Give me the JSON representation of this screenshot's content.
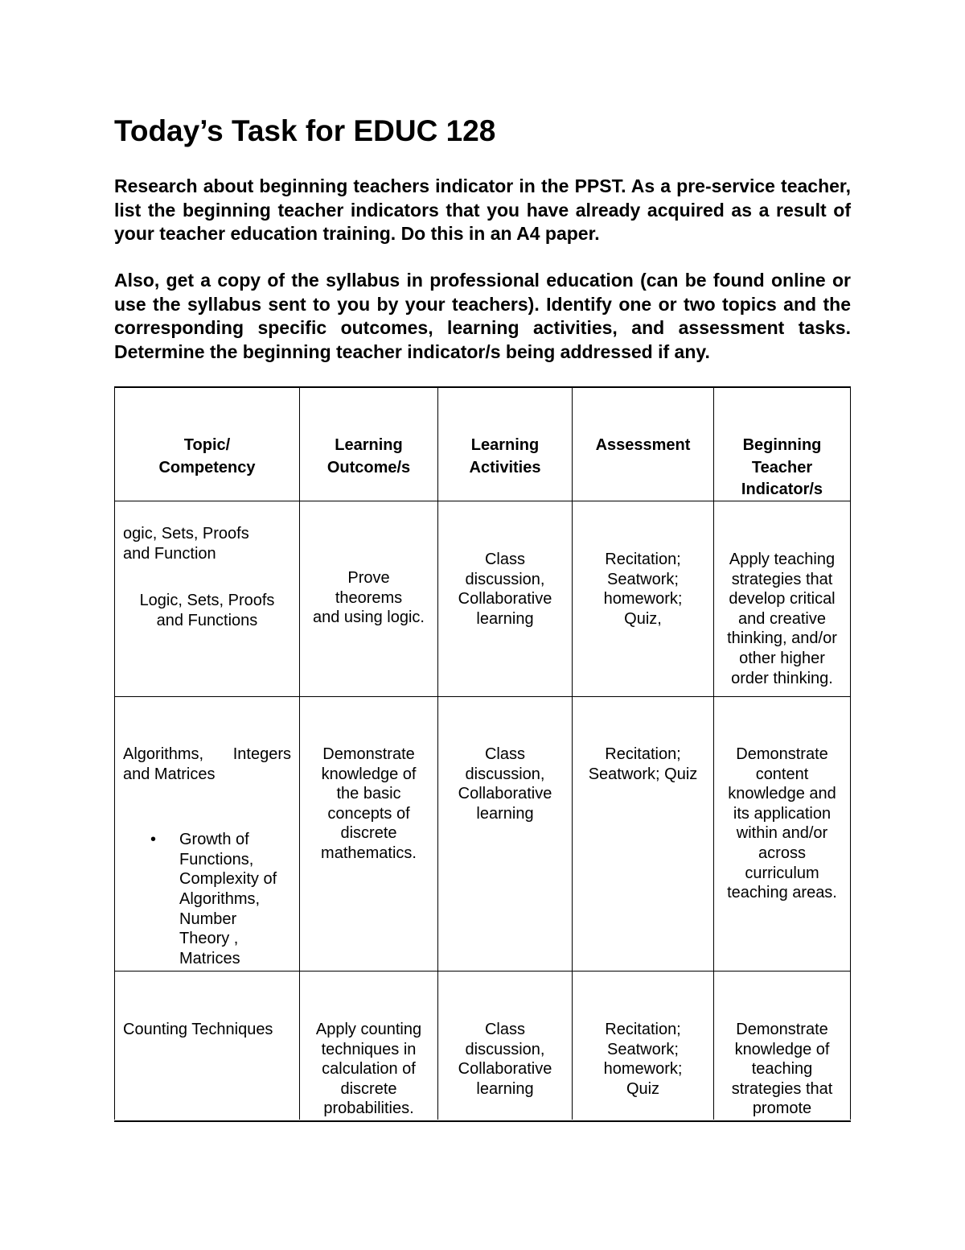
{
  "title": "Today’s Task for EDUC 128",
  "paragraphs": [
    "Research about beginning teachers indicator in the PPST. As a pre-service teacher, list the beginning teacher indicators that you have already acquired as a result of your teacher education training. Do this in an A4 paper.",
    "Also, get a copy of the syllabus in professional education (can be found online or use the syllabus sent to you by your teachers). Identify one or two topics and the corresponding specific outcomes, learning activities, and assessment tasks. Determine the beginning teacher indicator/s being addressed if any."
  ],
  "table": {
    "headers": [
      [
        "Topic/",
        "Competency"
      ],
      [
        "Learning",
        "Outcome/s"
      ],
      [
        "Learning",
        "Activities"
      ],
      [
        "Assessment"
      ],
      [
        "Beginning",
        "Teacher",
        "Indicator/s"
      ]
    ],
    "rows": [
      {
        "topic_a": [
          "ogic, Sets, Proofs",
          "and Function"
        ],
        "topic_b": [
          "Logic, Sets, Proofs",
          "and Functions"
        ],
        "outcome": [
          "Prove",
          "theorems",
          "and using logic."
        ],
        "activities": [
          "Class",
          "discussion,",
          "Collaborative",
          "learning"
        ],
        "assessment": [
          "Recitation;",
          "Seatwork;",
          "homework;",
          "Quiz,"
        ],
        "indicator": [
          "Apply teaching",
          "strategies that",
          "develop critical",
          "and creative",
          "thinking, and/or",
          "other higher",
          "order thinking."
        ]
      },
      {
        "topic_a": [
          "Algorithms,",
          "Integers",
          "and Matrices"
        ],
        "topic_bullet": [
          "Growth of",
          "Functions,",
          "Complexity of",
          "Algorithms,",
          "Number",
          "Theory ,",
          "Matrices"
        ],
        "outcome": [
          "Demonstrate",
          "knowledge of",
          "the basic",
          "concepts of",
          "discrete",
          "mathematics."
        ],
        "activities": [
          "Class",
          "discussion,",
          "Collaborative",
          "learning"
        ],
        "assessment": [
          "Recitation;",
          "Seatwork; Quiz"
        ],
        "indicator": [
          "Demonstrate",
          "content",
          "knowledge and",
          "its application",
          "within and/or",
          "across",
          "curriculum",
          "teaching areas."
        ]
      },
      {
        "topic_a": [
          "Counting Techniques"
        ],
        "outcome": [
          "Apply counting",
          "techniques in",
          "calculation of",
          "discrete",
          "probabilities."
        ],
        "activities": [
          "Class",
          "discussion,",
          "Collaborative",
          "learning"
        ],
        "assessment": [
          "Recitation;",
          "Seatwork;",
          "homework;",
          "Quiz"
        ],
        "indicator": [
          "Demonstrate",
          "knowledge of",
          "teaching",
          "strategies that",
          "promote"
        ]
      }
    ]
  }
}
